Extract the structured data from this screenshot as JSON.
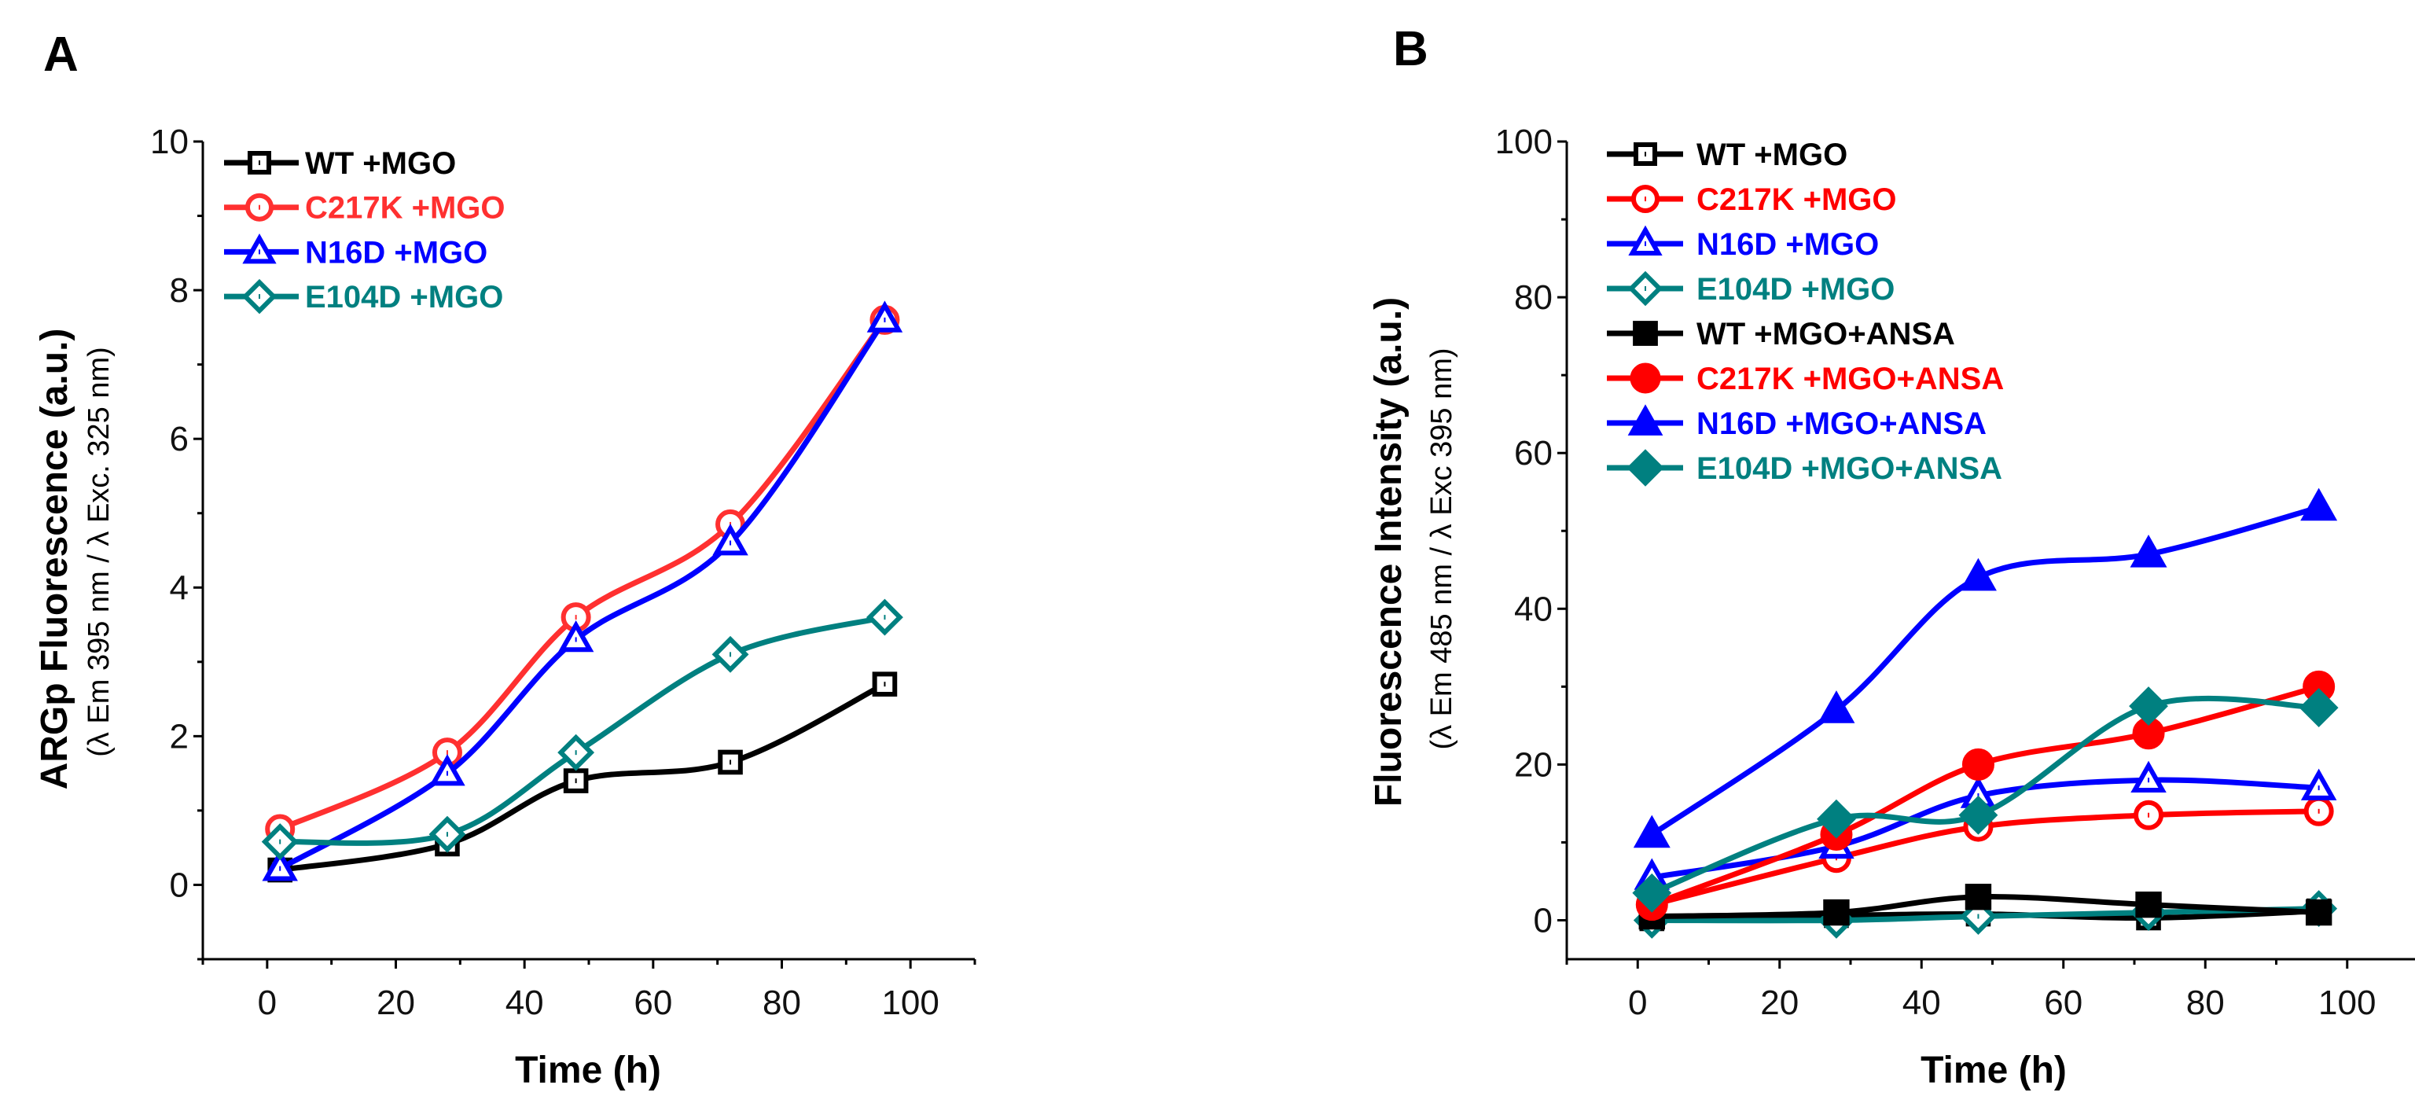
{
  "chart_data": [
    {
      "panel": "A",
      "type": "line",
      "xlabel": "Time (h)",
      "ylabel": "ARGp Fluorescence (a.u.)",
      "ylabel_sub": "(λ Em 395 nm / λ Exc. 325 nm)",
      "xlim": [
        -10,
        110
      ],
      "ylim": [
        -1,
        10
      ],
      "xticks": [
        0,
        20,
        40,
        60,
        80,
        100
      ],
      "yticks": [
        0,
        2,
        4,
        6,
        8,
        10
      ],
      "legend_position": "top-left",
      "x": [
        2,
        28,
        48,
        72,
        96
      ],
      "series": [
        {
          "name": "WT +MGO",
          "color": "#000000",
          "marker": "square",
          "filled": false,
          "values": [
            0.2,
            0.55,
            1.4,
            1.65,
            2.7
          ]
        },
        {
          "name": "C217K +MGO",
          "color": "#ff3030",
          "marker": "circle",
          "filled": false,
          "values": [
            0.75,
            1.78,
            3.6,
            4.85,
            7.6
          ]
        },
        {
          "name": "N16D +MGO",
          "color": "#0000ff",
          "marker": "triangle",
          "filled": false,
          "values": [
            0.22,
            1.5,
            3.3,
            4.6,
            7.6
          ]
        },
        {
          "name": "E104D +MGO",
          "color": "#008080",
          "marker": "diamond",
          "filled": false,
          "values": [
            0.58,
            0.68,
            1.78,
            3.1,
            3.6
          ]
        }
      ]
    },
    {
      "panel": "B",
      "type": "line",
      "xlabel": "Time (h)",
      "ylabel": "Fluorescence Intensity (a.u.)",
      "ylabel_sub": "(λ Em 485 nm / λ Exc 395 nm)",
      "xlim": [
        -10,
        110
      ],
      "ylim": [
        -5,
        100
      ],
      "xticks": [
        0,
        20,
        40,
        60,
        80,
        100
      ],
      "yticks": [
        0,
        20,
        40,
        60,
        80,
        100
      ],
      "legend_position": "top-left",
      "x": [
        2,
        28,
        48,
        72,
        96
      ],
      "series": [
        {
          "name": "WT +MGO",
          "color": "#000000",
          "marker": "square",
          "filled": false,
          "values": [
            0.2,
            0.6,
            0.8,
            0.3,
            1.2
          ]
        },
        {
          "name": "C217K +MGO",
          "color": "#ff0000",
          "marker": "circle",
          "filled": false,
          "values": [
            2,
            8,
            12,
            13.5,
            14
          ]
        },
        {
          "name": "N16D +MGO",
          "color": "#0000ff",
          "marker": "triangle",
          "filled": false,
          "values": [
            5.5,
            9.5,
            16,
            18,
            17
          ]
        },
        {
          "name": "E104D +MGO",
          "color": "#008080",
          "marker": "diamond",
          "filled": false,
          "values": [
            0,
            0,
            0.5,
            1,
            1.5
          ]
        },
        {
          "name": "WT +MGO+ANSA",
          "color": "#000000",
          "marker": "square",
          "filled": true,
          "values": [
            0.5,
            1,
            3,
            2,
            1
          ]
        },
        {
          "name": "C217K +MGO+ANSA",
          "color": "#ff0000",
          "marker": "circle",
          "filled": true,
          "values": [
            2,
            11,
            20,
            24,
            30
          ]
        },
        {
          "name": " N16D +MGO+ANSA",
          "color": "#0000ff",
          "marker": "triangle",
          "filled": true,
          "values": [
            11,
            27,
            44,
            47,
            53
          ]
        },
        {
          "name": "E104D +MGO+ANSA",
          "color": "#008080",
          "marker": "diamond",
          "filled": true,
          "values": [
            3.5,
            13,
            13.5,
            27.5,
            27.3
          ]
        }
      ]
    }
  ]
}
